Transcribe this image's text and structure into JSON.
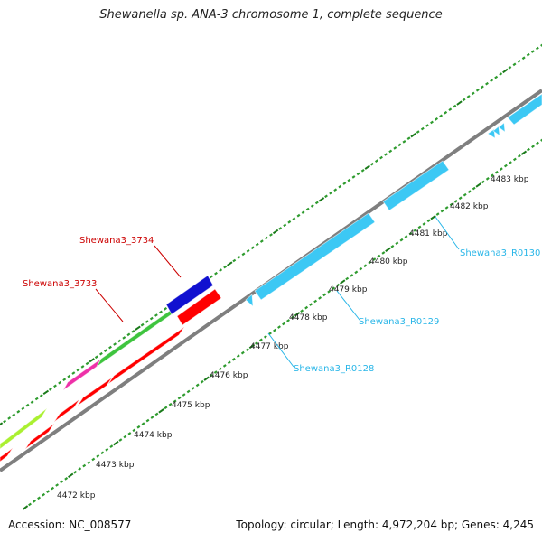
{
  "title": "Shewanella sp. ANA-3 chromosome 1, complete sequence",
  "footer": {
    "accession": "Accession: NC_008577",
    "stats": "Topology: circular; Length: 4,972,204 bp; Genes: 4,245"
  },
  "colors": {
    "backbone": "#7f7f7f",
    "tick_major": "#1a7a1a",
    "tick_minor": "#2e9b2e",
    "forward_label": "#cc0000",
    "reverse_label": "#29b6e8",
    "red_gene": "#ff0000",
    "blue_gene": "#1010d0",
    "green_gene": "#3ec43e",
    "magenta_gene": "#ee30a8",
    "lime_gene": "#aaf030",
    "cyan_gene": "#3cc8f4"
  },
  "kbp_labels": [
    "4472 kbp",
    "4473 kbp",
    "4474 kbp",
    "4475 kbp",
    "4476 kbp",
    "4477 kbp",
    "4478 kbp",
    "4479 kbp",
    "4480 kbp",
    "4481 kbp",
    "4482 kbp",
    "4483 kbp"
  ],
  "gene_labels": [
    {
      "text": "Shewana3_3734",
      "strand": "forward"
    },
    {
      "text": "Shewana3_3733",
      "strand": "forward"
    },
    {
      "text": "Shewana3_R0130",
      "strand": "reverse"
    },
    {
      "text": "Shewana3_R0129",
      "strand": "reverse"
    },
    {
      "text": "Shewana3_R0128",
      "strand": "reverse"
    }
  ]
}
